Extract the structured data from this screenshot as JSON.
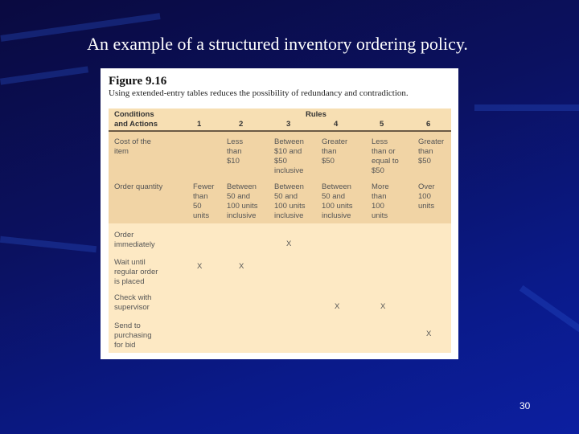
{
  "slide": {
    "title": "An example of a structured inventory ordering policy.",
    "page_number": "30"
  },
  "figure": {
    "number": "Figure 9.16",
    "caption": "Using extended-entry tables reduces the possibility of redundancy and contradiction.",
    "header": {
      "label": "Conditions\nand Actions",
      "group": "Rules",
      "rules": [
        "1",
        "2",
        "3",
        "4",
        "5",
        "6"
      ]
    },
    "conditions": [
      {
        "label": "Cost of the\nitem",
        "values": [
          "",
          "Less\nthan\n$10",
          "Between\n$10 and\n$50\ninclusive",
          "Greater\nthan\n$50",
          "Less\nthan or\nequal to\n$50",
          "Greater\nthan\n$50"
        ]
      },
      {
        "label": "Order quantity",
        "values": [
          "Fewer\nthan\n50\nunits",
          "Between\n50 and\n100 units\ninclusive",
          "Between\n50 and\n100 units\ninclusive",
          "Between\n50 and\n100 units\ninclusive",
          "More\nthan\n100\nunits",
          "Over\n100\nunits"
        ]
      }
    ],
    "actions": [
      {
        "label": "Order\nimmediately",
        "values": [
          "",
          "",
          "X",
          "",
          "",
          ""
        ]
      },
      {
        "label": "Wait until\nregular order\nis placed",
        "values": [
          "X",
          "X",
          "",
          "",
          "",
          ""
        ]
      },
      {
        "label": "Check with\nsupervisor",
        "values": [
          "",
          "",
          "",
          "X",
          "X",
          ""
        ]
      },
      {
        "label": "Send to\npurchasing\nfor bid",
        "values": [
          "",
          "",
          "",
          "",
          "",
          "X"
        ]
      }
    ]
  }
}
